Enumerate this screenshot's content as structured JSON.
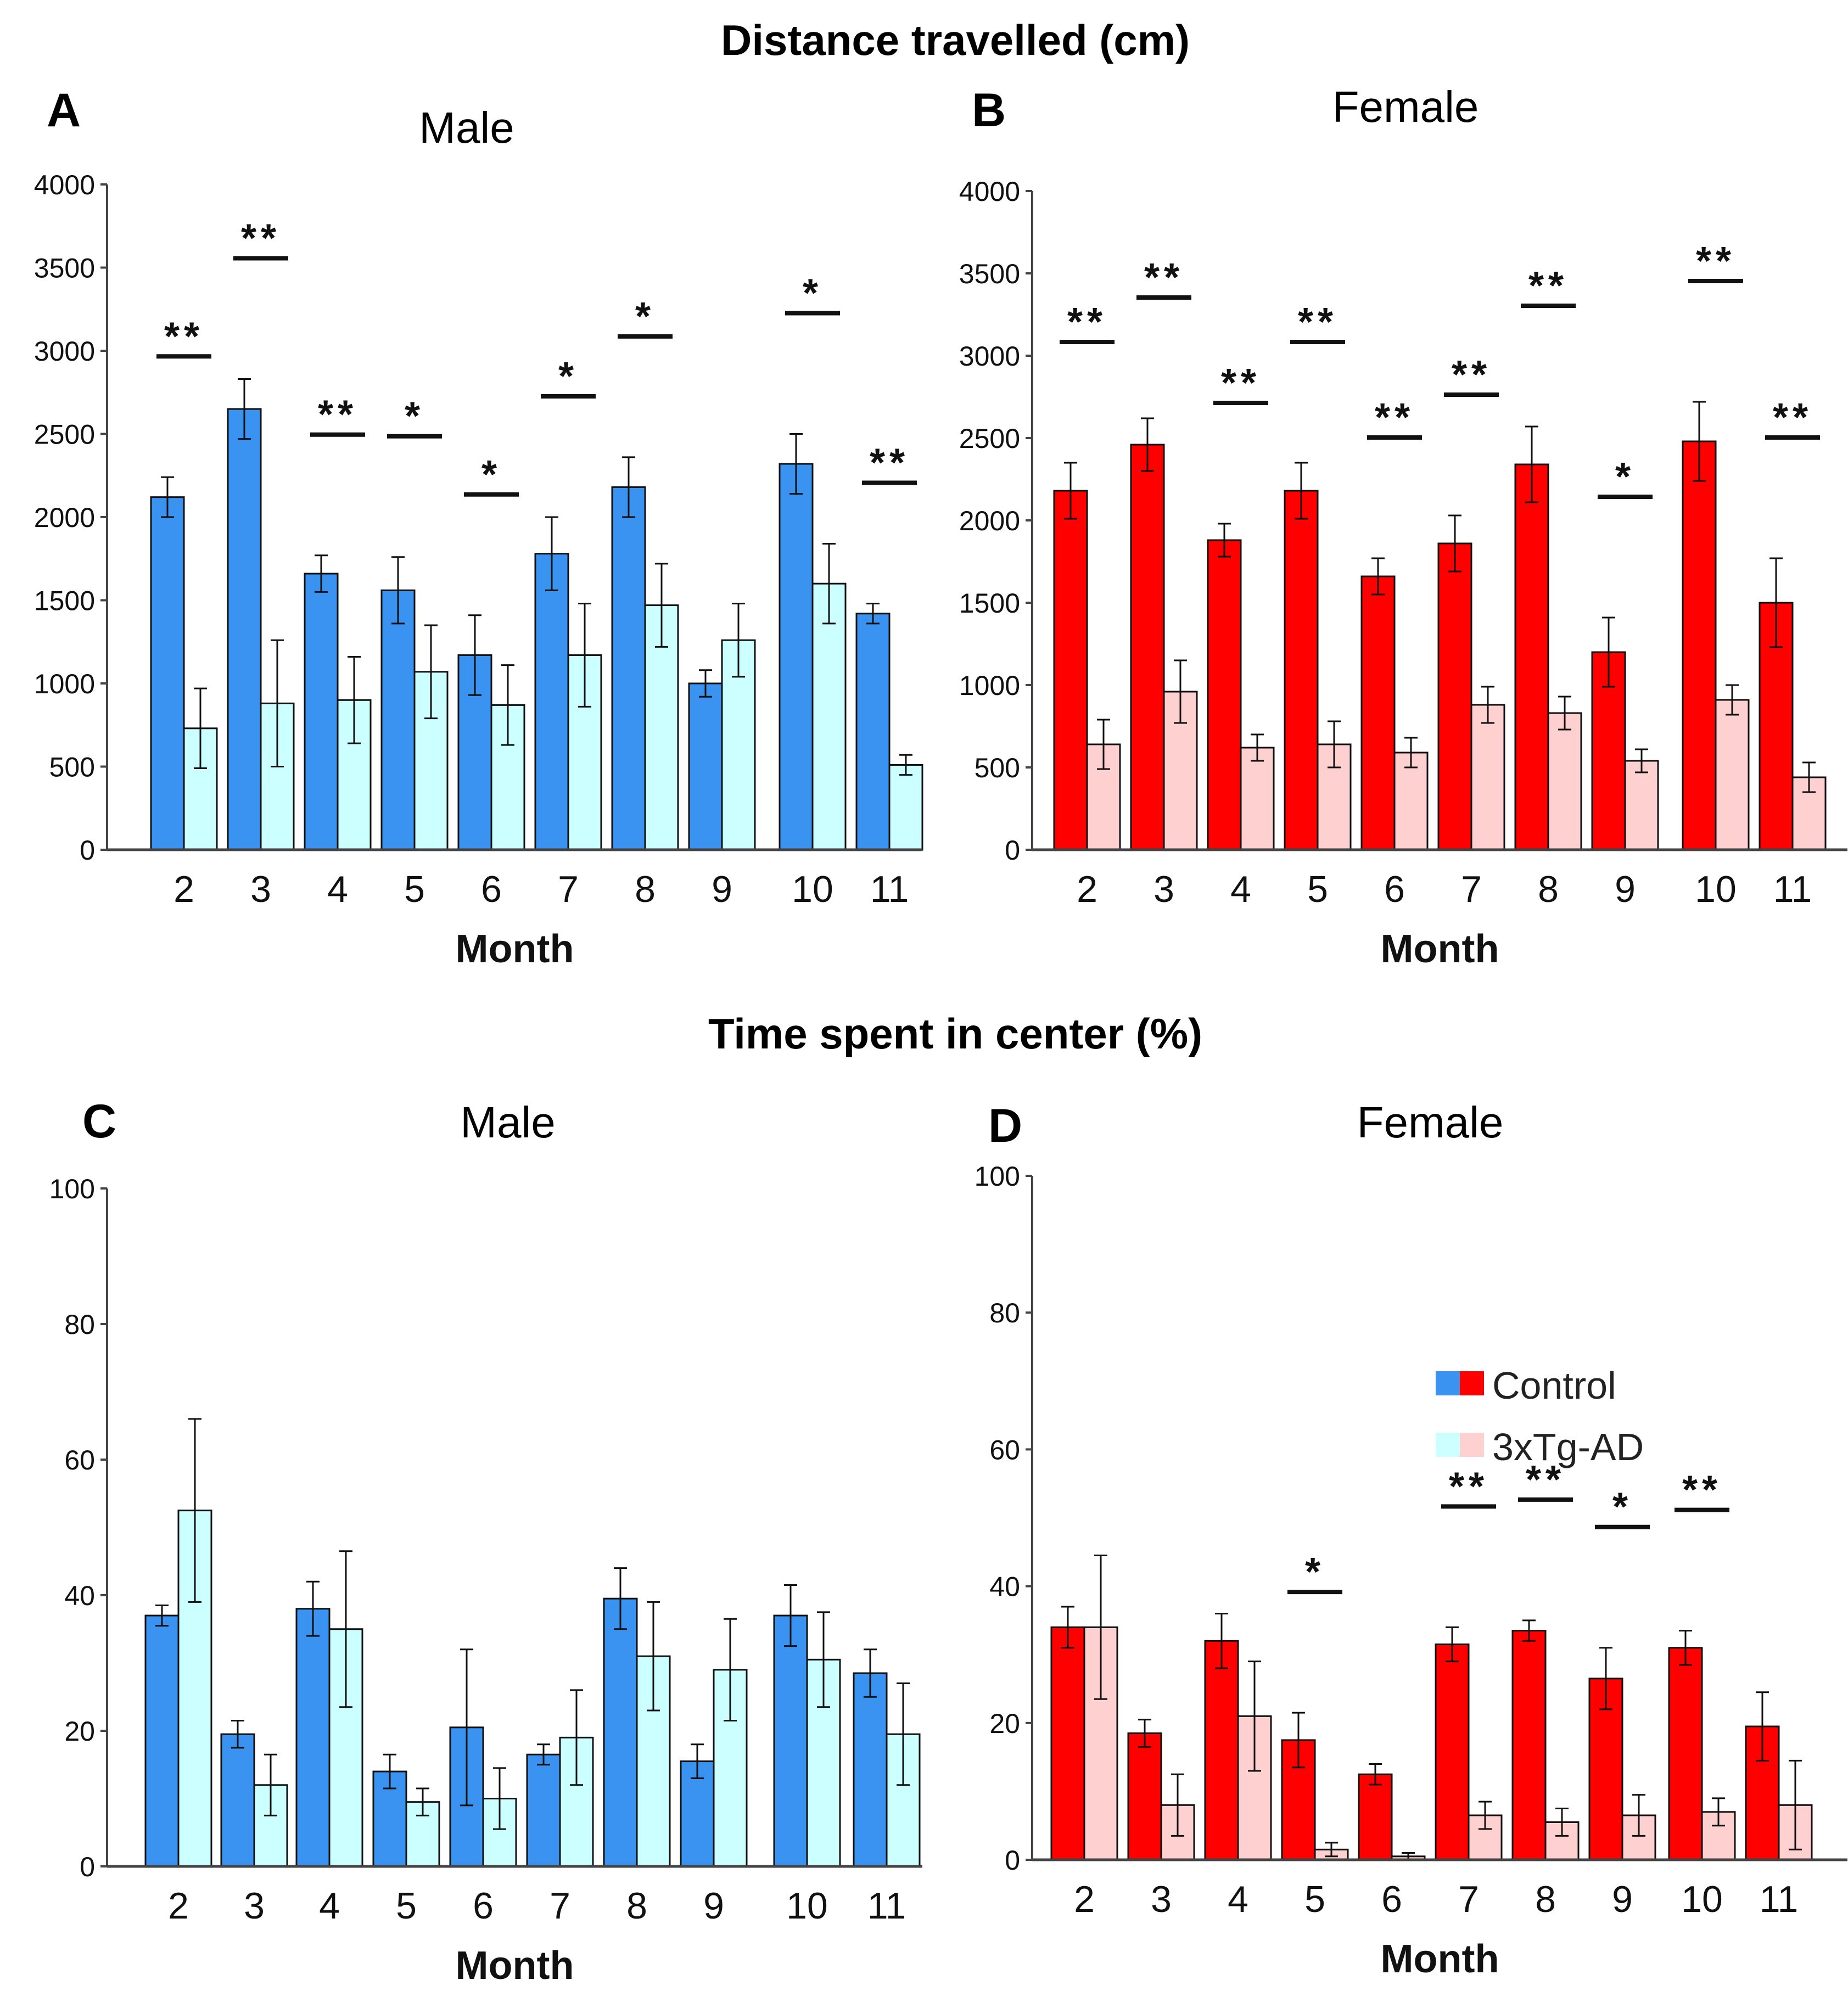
{
  "figure": {
    "row_titles": [
      "Distance travelled  (cm)",
      "Time spent in center  (%)"
    ],
    "legend": {
      "entries": [
        {
          "label": "Control",
          "colors": [
            "#3a93f0",
            "#ff0000"
          ]
        },
        {
          "label": "3xTg-AD",
          "colors": [
            "#ccffff",
            "#ffd0d0"
          ]
        }
      ]
    }
  },
  "colors": {
    "male_control": "#3a93f0",
    "male_tg": "#ccffff",
    "female_control": "#ff0000",
    "female_tg": "#ffd0d0",
    "axis": "#444444",
    "text": "#000000"
  },
  "chart_data": [
    {
      "panel": "A",
      "type": "bar",
      "title": "Male",
      "xlabel": "Month",
      "ylabel": "",
      "ylim": [
        0,
        4000
      ],
      "yticks": [
        0,
        500,
        1000,
        1500,
        2000,
        2500,
        3000,
        3500,
        4000
      ],
      "categories": [
        "2",
        "3",
        "4",
        "5",
        "6",
        "7",
        "8",
        "9",
        "10",
        "11"
      ],
      "series": [
        {
          "name": "Control",
          "values": [
            2120,
            2650,
            1660,
            1560,
            1170,
            1780,
            2180,
            1000,
            2320,
            1420
          ],
          "errors": [
            120,
            180,
            110,
            200,
            240,
            220,
            180,
            80,
            180,
            60
          ]
        },
        {
          "name": "3xTg-AD",
          "values": [
            730,
            880,
            900,
            1070,
            870,
            1170,
            1470,
            1260,
            1600,
            510
          ],
          "errors": [
            240,
            380,
            260,
            280,
            240,
            310,
            250,
            220,
            240,
            60
          ]
        }
      ],
      "significance": [
        "**",
        "**",
        "**",
        "*",
        "*",
        "*",
        "*",
        "",
        "*",
        "**"
      ]
    },
    {
      "panel": "B",
      "type": "bar",
      "title": "Female",
      "xlabel": "Month",
      "ylabel": "",
      "ylim": [
        0,
        4000
      ],
      "yticks": [
        0,
        500,
        1000,
        1500,
        2000,
        2500,
        3000,
        3500,
        4000
      ],
      "categories": [
        "2",
        "3",
        "4",
        "5",
        "6",
        "7",
        "8",
        "9",
        "10",
        "11"
      ],
      "series": [
        {
          "name": "Control",
          "values": [
            2180,
            2460,
            1880,
            2180,
            1660,
            1860,
            2340,
            1200,
            2480,
            1500
          ],
          "errors": [
            170,
            160,
            100,
            170,
            110,
            170,
            230,
            210,
            240,
            270
          ]
        },
        {
          "name": "3xTg-AD",
          "values": [
            640,
            960,
            620,
            640,
            590,
            880,
            830,
            540,
            910,
            440
          ],
          "errors": [
            150,
            190,
            80,
            140,
            90,
            110,
            100,
            70,
            90,
            90
          ]
        }
      ],
      "significance": [
        "**",
        "**",
        "**",
        "**",
        "**",
        "**",
        "**",
        "*",
        "**",
        "**"
      ]
    },
    {
      "panel": "C",
      "type": "bar",
      "title": "Male",
      "xlabel": "Month",
      "ylabel": "",
      "ylim": [
        0,
        100
      ],
      "yticks": [
        0,
        20,
        40,
        60,
        80,
        100
      ],
      "categories": [
        "2",
        "3",
        "4",
        "5",
        "6",
        "7",
        "8",
        "9",
        "10",
        "11"
      ],
      "series": [
        {
          "name": "Control",
          "values": [
            37,
            19.5,
            38,
            14,
            20.5,
            16.5,
            39.5,
            15.5,
            37,
            28.5
          ],
          "errors": [
            1.5,
            2,
            4,
            2.5,
            11.5,
            1.5,
            4.5,
            2.5,
            4.5,
            3.5
          ]
        },
        {
          "name": "3xTg-AD",
          "values": [
            52.5,
            12,
            35,
            9.5,
            10,
            19,
            31,
            29,
            30.5,
            19.5
          ],
          "errors": [
            13.5,
            4.5,
            11.5,
            2,
            4.5,
            7,
            8,
            7.5,
            7,
            7.5
          ]
        }
      ],
      "significance": [
        "",
        "",
        "",
        "",
        "",
        "",
        "",
        "",
        "",
        ""
      ]
    },
    {
      "panel": "D",
      "type": "bar",
      "title": "Female",
      "xlabel": "Month",
      "ylabel": "",
      "ylim": [
        0,
        100
      ],
      "yticks": [
        0,
        20,
        40,
        60,
        80,
        100
      ],
      "categories": [
        "2",
        "3",
        "4",
        "5",
        "6",
        "7",
        "8",
        "9",
        "10",
        "11"
      ],
      "series": [
        {
          "name": "Control",
          "values": [
            34,
            18.5,
            32,
            17.5,
            12.5,
            31.5,
            33.5,
            26.5,
            31,
            19.5
          ],
          "errors": [
            3,
            2,
            4,
            4,
            1.5,
            2.5,
            1.5,
            4.5,
            2.5,
            5
          ]
        },
        {
          "name": "3xTg-AD",
          "values": [
            34,
            8,
            21,
            1.5,
            0.5,
            6.5,
            5.5,
            6.5,
            7,
            8
          ],
          "errors": [
            10.5,
            4.5,
            8,
            1,
            0.5,
            2,
            2,
            3,
            2,
            6.5
          ]
        }
      ],
      "significance": [
        "",
        "",
        "",
        "*",
        "",
        "**",
        "**",
        "*",
        "**",
        ""
      ]
    }
  ]
}
